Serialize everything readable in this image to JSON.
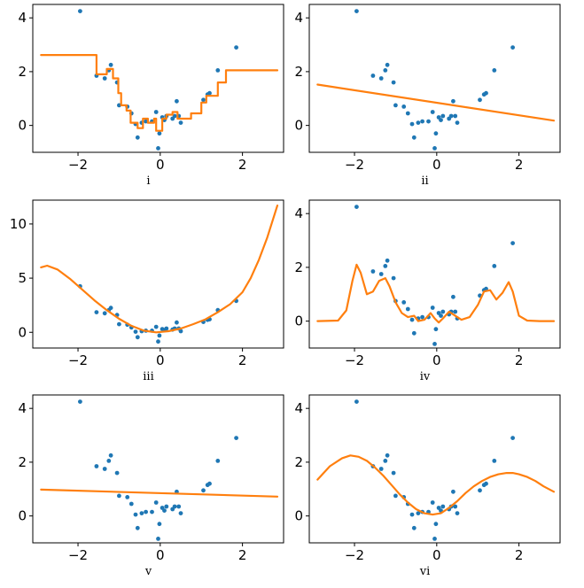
{
  "colors": {
    "points": "#1f77b4",
    "fit": "#ff7f0e"
  },
  "points": [
    [
      -1.95,
      4.25
    ],
    [
      -1.55,
      1.85
    ],
    [
      -1.35,
      1.75
    ],
    [
      -1.25,
      2.05
    ],
    [
      -1.2,
      2.25
    ],
    [
      -1.05,
      1.6
    ],
    [
      -1.0,
      0.75
    ],
    [
      -0.8,
      0.7
    ],
    [
      -0.7,
      0.45
    ],
    [
      -0.6,
      0.05
    ],
    [
      -0.55,
      -0.45
    ],
    [
      -0.45,
      0.1
    ],
    [
      -0.35,
      0.15
    ],
    [
      -0.2,
      0.15
    ],
    [
      -0.1,
      0.5
    ],
    [
      -0.05,
      -0.85
    ],
    [
      -0.02,
      -0.3
    ],
    [
      0.05,
      0.3
    ],
    [
      0.1,
      0.2
    ],
    [
      0.15,
      0.35
    ],
    [
      0.3,
      0.25
    ],
    [
      0.35,
      0.35
    ],
    [
      0.4,
      0.9
    ],
    [
      0.45,
      0.35
    ],
    [
      0.5,
      0.1
    ],
    [
      1.05,
      0.95
    ],
    [
      1.15,
      1.15
    ],
    [
      1.2,
      1.2
    ],
    [
      1.4,
      2.05
    ],
    [
      1.85,
      2.9
    ]
  ],
  "chart_data": [
    {
      "type": "scatter",
      "caption": "i",
      "fit": "step",
      "xlim": [
        -3.1,
        3.0
      ],
      "ylim": [
        -1.0,
        4.5
      ],
      "xticks": [
        -2,
        0,
        2
      ],
      "yticks": [
        0,
        2,
        4
      ],
      "fit_steps": [
        [
          -2.9,
          2.62
        ],
        [
          -1.55,
          1.9
        ],
        [
          -1.3,
          2.1
        ],
        [
          -1.15,
          1.75
        ],
        [
          -1.02,
          1.2
        ],
        [
          -0.95,
          0.75
        ],
        [
          -0.82,
          0.55
        ],
        [
          -0.72,
          0.1
        ],
        [
          -0.55,
          -0.1
        ],
        [
          -0.42,
          0.25
        ],
        [
          -0.3,
          0.1
        ],
        [
          -0.15,
          0.25
        ],
        [
          -0.1,
          -0.2
        ],
        [
          0.05,
          0.25
        ],
        [
          0.15,
          0.4
        ],
        [
          0.3,
          0.5
        ],
        [
          0.42,
          0.25
        ],
        [
          0.75,
          0.45
        ],
        [
          1.0,
          0.85
        ],
        [
          1.12,
          1.1
        ],
        [
          1.4,
          1.6
        ],
        [
          1.6,
          2.05
        ],
        [
          2.85,
          2.05
        ]
      ]
    },
    {
      "type": "scatter",
      "caption": "ii",
      "fit": "line",
      "xlim": [
        -3.1,
        3.0
      ],
      "ylim": [
        -1.0,
        4.5
      ],
      "xticks": [
        -2,
        0,
        2
      ],
      "yticks": [
        0,
        2,
        4
      ],
      "fit_x": [
        -2.9,
        2.85
      ],
      "fit_y": [
        1.52,
        0.18
      ]
    },
    {
      "type": "scatter",
      "caption": "iii",
      "fit": "curve",
      "xlim": [
        -3.1,
        3.0
      ],
      "ylim": [
        -1.45,
        12.2
      ],
      "xticks": [
        -2,
        0,
        2
      ],
      "yticks": [
        0,
        5,
        10
      ],
      "fit_x": [
        -2.9,
        -2.75,
        -2.5,
        -2.2,
        -1.9,
        -1.6,
        -1.3,
        -1.0,
        -0.7,
        -0.4,
        -0.1,
        0.2,
        0.5,
        0.8,
        1.1,
        1.4,
        1.7,
        2.0,
        2.2,
        2.4,
        2.6,
        2.85
      ],
      "fit_y": [
        6.0,
        6.15,
        5.8,
        4.95,
        3.95,
        2.95,
        2.05,
        1.25,
        0.6,
        0.15,
        0.0,
        0.1,
        0.35,
        0.75,
        1.2,
        1.85,
        2.6,
        3.7,
        5.0,
        6.7,
        8.7,
        11.7
      ]
    },
    {
      "type": "scatter",
      "caption": "iv",
      "fit": "curve",
      "xlim": [
        -3.1,
        3.0
      ],
      "ylim": [
        -1.0,
        4.5
      ],
      "xticks": [
        -2,
        0,
        2
      ],
      "yticks": [
        0,
        2,
        4
      ],
      "fit_x": [
        -2.9,
        -2.4,
        -2.2,
        -2.05,
        -1.95,
        -1.85,
        -1.7,
        -1.55,
        -1.4,
        -1.25,
        -1.15,
        -1.0,
        -0.85,
        -0.7,
        -0.55,
        -0.45,
        -0.3,
        -0.15,
        -0.05,
        0.05,
        0.15,
        0.3,
        0.45,
        0.6,
        0.8,
        1.0,
        1.15,
        1.3,
        1.45,
        1.6,
        1.75,
        1.85,
        2.0,
        2.2,
        2.5,
        2.85
      ],
      "fit_y": [
        0.0,
        0.02,
        0.4,
        1.5,
        2.1,
        1.8,
        1.0,
        1.1,
        1.5,
        1.6,
        1.3,
        0.7,
        0.3,
        0.15,
        0.2,
        0.0,
        0.05,
        0.3,
        0.1,
        -0.05,
        0.1,
        0.35,
        0.2,
        0.05,
        0.15,
        0.6,
        1.1,
        1.15,
        0.8,
        1.05,
        1.45,
        1.1,
        0.2,
        0.02,
        0.0,
        0.0
      ]
    },
    {
      "type": "scatter",
      "caption": "v",
      "fit": "line",
      "xlim": [
        -3.1,
        3.0
      ],
      "ylim": [
        -1.0,
        4.5
      ],
      "xticks": [
        -2,
        0,
        2
      ],
      "yticks": [
        0,
        2,
        4
      ],
      "fit_x": [
        -2.9,
        2.85
      ],
      "fit_y": [
        0.98,
        0.72
      ]
    },
    {
      "type": "scatter",
      "caption": "vi",
      "fit": "curve",
      "xlim": [
        -3.1,
        3.0
      ],
      "ylim": [
        -1.0,
        4.5
      ],
      "xticks": [
        -2,
        0,
        2
      ],
      "yticks": [
        0,
        2,
        4
      ],
      "fit_x": [
        -2.9,
        -2.6,
        -2.3,
        -2.1,
        -1.9,
        -1.7,
        -1.5,
        -1.3,
        -1.1,
        -0.9,
        -0.7,
        -0.5,
        -0.3,
        -0.1,
        0.1,
        0.3,
        0.5,
        0.7,
        0.9,
        1.1,
        1.3,
        1.5,
        1.7,
        1.85,
        2.0,
        2.2,
        2.4,
        2.6,
        2.85
      ],
      "fit_y": [
        1.35,
        1.85,
        2.15,
        2.25,
        2.2,
        2.05,
        1.8,
        1.5,
        1.15,
        0.8,
        0.5,
        0.25,
        0.1,
        0.05,
        0.1,
        0.3,
        0.55,
        0.85,
        1.1,
        1.3,
        1.45,
        1.55,
        1.6,
        1.6,
        1.55,
        1.45,
        1.3,
        1.1,
        0.9
      ]
    }
  ]
}
